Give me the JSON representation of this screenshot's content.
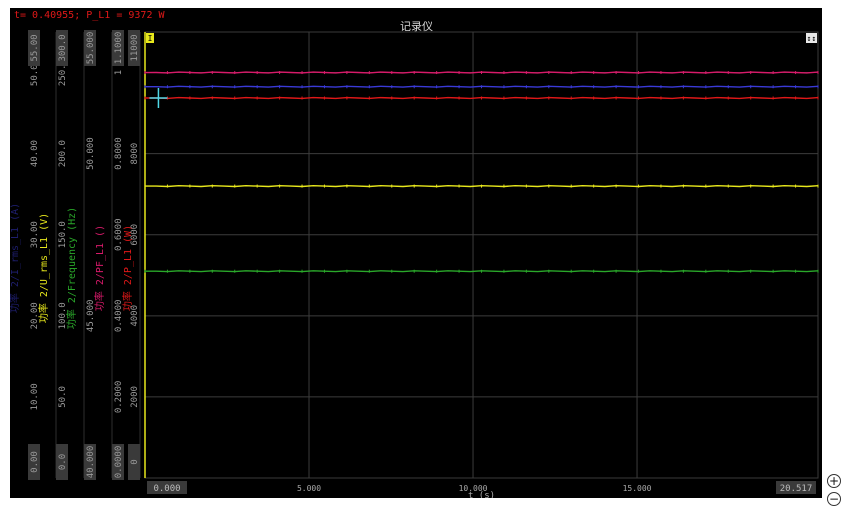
{
  "title": "记录仪",
  "cursor_readout": "t= 0.40955; P_L1 = 9372 W",
  "zoom_in_icon": "plus-circle-icon",
  "zoom_out_icon": "minus-circle-icon",
  "corner_markers": {
    "left": "I",
    "right": "↕↕"
  },
  "chart_data": {
    "type": "line",
    "xlabel": "t (s)",
    "xlim": [
      0,
      20.517
    ],
    "x_ticks": [
      "0.000",
      "5.000",
      "10.000",
      "15.000",
      "20.517"
    ],
    "grid": true,
    "plot_ylim": [
      0,
      11000
    ],
    "y_axes": [
      {
        "label": "功率 2/U_rms_L1 (V)",
        "color": "#e8e81c",
        "ticks": [
          {
            "v": 0,
            "t": "0.00"
          },
          {
            "v": 2000,
            "t": "10.00"
          },
          {
            "v": 4000,
            "t": "20.00"
          },
          {
            "v": 6000,
            "t": "30.00"
          },
          {
            "v": 8000,
            "t": "40.00"
          },
          {
            "v": 10000,
            "t": "50.00"
          },
          {
            "v": 11000,
            "t": "55.00"
          }
        ]
      },
      {
        "label": "功率 2/Frequency (Hz)",
        "color": "#2aa82a",
        "ticks": [
          {
            "v": 0,
            "t": "0.0"
          },
          {
            "v": 2000,
            "t": "50.0"
          },
          {
            "v": 4000,
            "t": "100.0"
          },
          {
            "v": 6000,
            "t": "150.0"
          },
          {
            "v": 8000,
            "t": "200.0"
          },
          {
            "v": 10000,
            "t": "250.0"
          },
          {
            "v": 11000,
            "t": "300.0"
          }
        ]
      },
      {
        "label": "功率 2/PF_L1 ()",
        "color": "#d81a6a",
        "ticks": [
          {
            "v": 0,
            "t": "40.000"
          },
          {
            "v": 4000,
            "t": "45.000"
          },
          {
            "v": 8000,
            "t": "50.000"
          },
          {
            "v": 11000,
            "t": "55.000"
          }
        ]
      },
      {
        "label": "功率 2/P_L1 (W)",
        "color": "#e01818",
        "ticks": [
          {
            "v": 0,
            "t": "0.0000"
          },
          {
            "v": 2000,
            "t": "0.2000"
          },
          {
            "v": 4000,
            "t": "0.4000"
          },
          {
            "v": 6000,
            "t": "0.6000"
          },
          {
            "v": 8000,
            "t": "0.8000"
          },
          {
            "v": 10000,
            "t": "1"
          },
          {
            "v": 11000,
            "t": "1.1000"
          }
        ]
      },
      {
        "label": "",
        "color": "#cccccc",
        "ticks": [
          {
            "v": 0,
            "t": "0"
          },
          {
            "v": 2000,
            "t": "2000"
          },
          {
            "v": 4000,
            "t": "4000"
          },
          {
            "v": 6000,
            "t": "6000"
          },
          {
            "v": 8000,
            "t": "8000"
          },
          {
            "v": 11000,
            "t": "11000"
          }
        ]
      }
    ],
    "faint_axis_label": "功率 2/I_rms_L1 (A)",
    "series": [
      {
        "color": "#d81a6a",
        "y": 10000
      },
      {
        "color": "#3a3ad8",
        "y": 9650
      },
      {
        "color": "#e01818",
        "y": 9372
      },
      {
        "color": "#e8e81c",
        "y": 7200
      },
      {
        "color": "#2aa82a",
        "y": 5100
      }
    ],
    "cursor": {
      "x": 0.40955,
      "y": 9372
    }
  }
}
